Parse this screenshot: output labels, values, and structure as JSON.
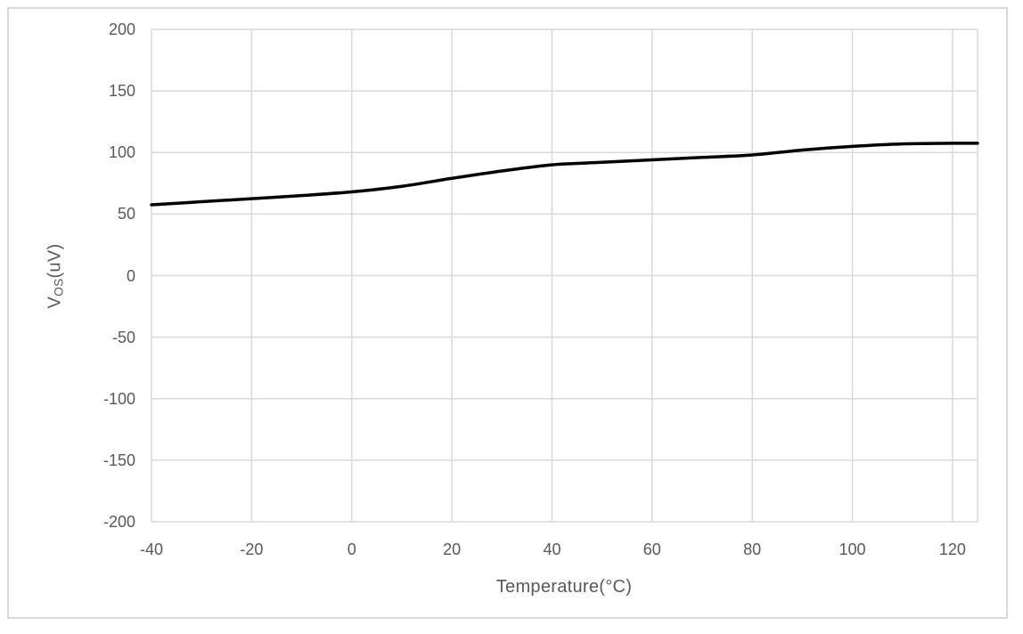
{
  "figure": {
    "background_color": "#ffffff",
    "frame_color": "#d9d9d9"
  },
  "chart_data": {
    "type": "line",
    "title": "",
    "xlabel": "Temperature(°C)",
    "ylabel": "Vos(uV)",
    "ylabel_parts": {
      "main": "V",
      "sub": "OS",
      "rest": "(uV)"
    },
    "xlim": [
      -40,
      125
    ],
    "ylim": [
      -200,
      200
    ],
    "xticks": [
      -40,
      -20,
      0,
      20,
      40,
      60,
      80,
      100,
      120
    ],
    "yticks": [
      200,
      150,
      100,
      50,
      0,
      -50,
      -100,
      -150,
      -200
    ],
    "grid": true,
    "legend_position": "none",
    "grid_color": "#d9d9d9",
    "axis_text_color": "#595959",
    "series": [
      {
        "name": "Vos",
        "color": "#000000",
        "line_width": 3.5,
        "x": [
          -40,
          -30,
          -20,
          -10,
          0,
          10,
          20,
          30,
          40,
          50,
          60,
          70,
          80,
          90,
          100,
          110,
          120,
          125
        ],
        "y": [
          57.5,
          60,
          62.5,
          65,
          68,
          72.5,
          79,
          85,
          90,
          92,
          94,
          96,
          98,
          102,
          105,
          107,
          107.5,
          107.5
        ]
      }
    ]
  }
}
